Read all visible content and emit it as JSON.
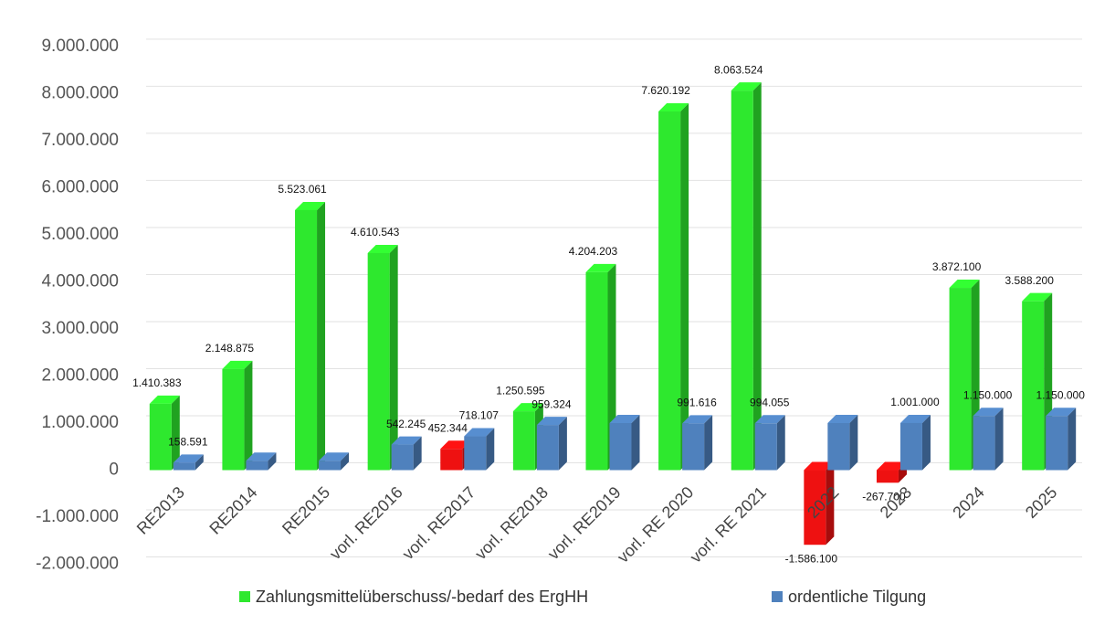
{
  "chart_data": {
    "type": "bar3d",
    "categories": [
      "RE2013",
      "RE2014",
      "RE2015",
      "vorl. RE2016",
      "vorl. RE2017",
      "vorl. RE2018",
      "vorl. RE2019",
      "vorl. RE 2020",
      "vorl. RE 2021",
      "2022",
      "2023",
      "2024",
      "2025"
    ],
    "series": [
      {
        "name": "Zahlungsmittelüberschuss/-bedarf des ErgHH",
        "color": "#2ee82e",
        "colors": [
          "#2ee82e",
          "#2ee82e",
          "#2ee82e",
          "#2ee82e",
          "#ee1111",
          "#2ee82e",
          "#2ee82e",
          "#2ee82e",
          "#2ee82e",
          "#ee1111",
          "#ee1111",
          "#2ee82e",
          "#2ee82e"
        ],
        "values": [
          1410383,
          2148875,
          5523061,
          4610543,
          452344,
          1250595,
          4204203,
          7620192,
          8063524,
          -1586100,
          -267700,
          3872100,
          3588200
        ],
        "value_labels": [
          "1.410.383",
          "2.148.875",
          "5.523.061",
          "4.610.543",
          "452.344",
          "1.250.595",
          "4.204.203",
          "7.620.192",
          "8.063.524",
          "-1.586.100",
          "-267.700",
          "3.872.100",
          "3.588.200"
        ]
      },
      {
        "name": "ordentliche Tilgung",
        "color": "#4f81bd",
        "values": [
          158591,
          200000,
          200000,
          542245,
          718107,
          959324,
          1000000,
          991616,
          994055,
          1000000,
          1001000,
          1150000,
          1150000
        ],
        "value_labels": [
          "158.591",
          null,
          null,
          "542.245",
          "718.107",
          "959.324",
          null,
          "991.616",
          "994.055",
          null,
          "1.001.000",
          "1.150.000",
          "1.150.000"
        ]
      }
    ],
    "ylim": [
      -2300000,
      9250000
    ],
    "yticks": [
      {
        "value": -2000000,
        "label": "-2.000.000"
      },
      {
        "value": -1000000,
        "label": "-1.000.000"
      },
      0,
      {
        "value": 1000000,
        "label": "1.000.000"
      },
      {
        "value": 2000000,
        "label": "2.000.000"
      },
      {
        "value": 3000000,
        "label": "3.000.000"
      },
      {
        "value": 4000000,
        "label": "4.000.000"
      },
      {
        "value": 5000000,
        "label": "5.000.000"
      },
      {
        "value": 6000000,
        "label": "6.000.000"
      },
      {
        "value": 7000000,
        "label": "7.000.000"
      },
      {
        "value": 8000000,
        "label": "8.000.000"
      },
      {
        "value": 9000000,
        "label": "9.000.000"
      }
    ],
    "grid": true,
    "legend": "bottom"
  }
}
